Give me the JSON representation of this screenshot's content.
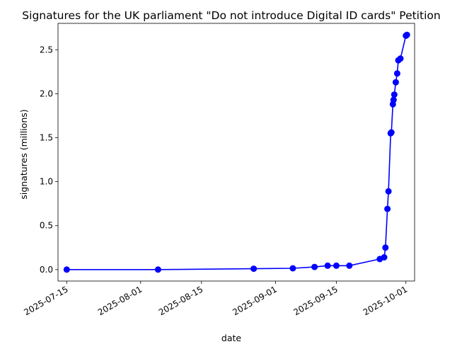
{
  "chart_data": {
    "type": "line",
    "title": "Signatures for the UK parliament \"Do not introduce Digital ID cards\" Petition",
    "xlabel": "date",
    "ylabel": "signatures (millions)",
    "x_type": "date",
    "xlim": [
      "2025-07-13",
      "2025-10-03"
    ],
    "ylim": [
      -0.13,
      2.8
    ],
    "xticks": [
      "2025-07-15",
      "2025-08-01",
      "2025-08-15",
      "2025-09-01",
      "2025-09-15",
      "2025-10-01"
    ],
    "yticks": [
      0.0,
      0.5,
      1.0,
      1.5,
      2.0,
      2.5
    ],
    "ytick_labels": [
      "0.0",
      "0.5",
      "1.0",
      "1.5",
      "2.0",
      "2.5"
    ],
    "grid": false,
    "series": [
      {
        "color": "#0000ff",
        "marker": "circle",
        "points": [
          {
            "x": "2025-07-15T00:00",
            "y": 0.0
          },
          {
            "x": "2025-08-05T00:00",
            "y": 0.0
          },
          {
            "x": "2025-08-27T00:00",
            "y": 0.01
          },
          {
            "x": "2025-09-05T00:00",
            "y": 0.015
          },
          {
            "x": "2025-09-10T00:00",
            "y": 0.03
          },
          {
            "x": "2025-09-13T00:00",
            "y": 0.045
          },
          {
            "x": "2025-09-15T00:00",
            "y": 0.045
          },
          {
            "x": "2025-09-18T00:00",
            "y": 0.045
          },
          {
            "x": "2025-09-25T00:00",
            "y": 0.12
          },
          {
            "x": "2025-09-26T00:00",
            "y": 0.14
          },
          {
            "x": "2025-09-26T07:00",
            "y": 0.25
          },
          {
            "x": "2025-09-26T18:00",
            "y": 0.69
          },
          {
            "x": "2025-09-27T00:00",
            "y": 0.89
          },
          {
            "x": "2025-09-27T12:00",
            "y": 1.55
          },
          {
            "x": "2025-09-27T16:00",
            "y": 1.56
          },
          {
            "x": "2025-09-28T00:00",
            "y": 1.88
          },
          {
            "x": "2025-09-28T04:00",
            "y": 1.93
          },
          {
            "x": "2025-09-28T08:00",
            "y": 1.99
          },
          {
            "x": "2025-09-28T16:00",
            "y": 2.13
          },
          {
            "x": "2025-09-29T00:00",
            "y": 2.23
          },
          {
            "x": "2025-09-29T06:00",
            "y": 2.38
          },
          {
            "x": "2025-09-29T18:00",
            "y": 2.4
          },
          {
            "x": "2025-10-01T00:00",
            "y": 2.66
          },
          {
            "x": "2025-10-01T06:00",
            "y": 2.67
          }
        ]
      }
    ]
  }
}
